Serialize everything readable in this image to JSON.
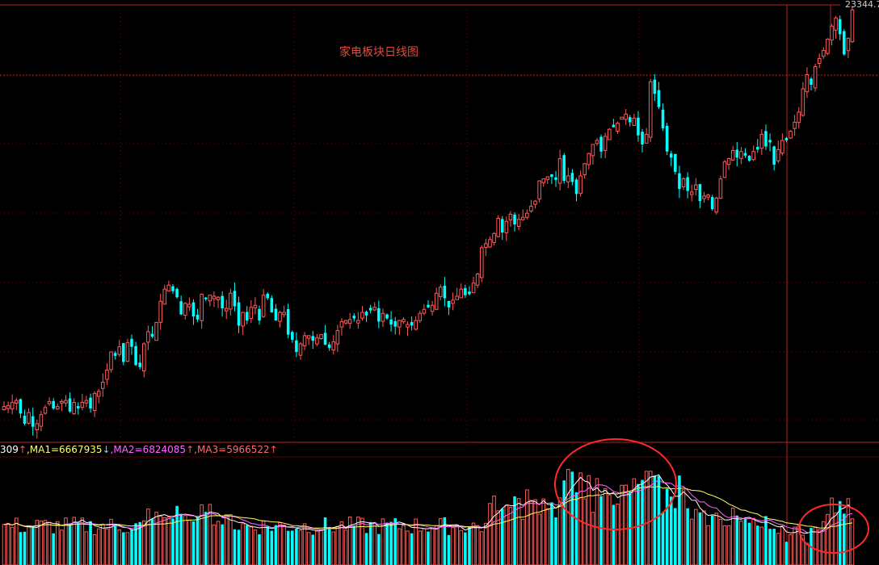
{
  "title": "家电板块日线图",
  "price_label": "23344.7",
  "volume_header": {
    "prefix": "309",
    "prefix_arrow": "↑",
    "ma1": ",MA1=6667935",
    "ma1_arrow": "↓",
    "ma2": ",MA2=6824085",
    "ma2_arrow": "↑",
    "ma3": ",MA3=5966522",
    "ma3_arrow": "↑"
  },
  "colors": {
    "up": "#ff5a5a",
    "down": "#00ffff",
    "grid": "#8b0000",
    "ma1": "#ffffff",
    "ma2": "#ff66ff",
    "ma3": "#ffff66",
    "title": "#e04a3a",
    "circle": "#ff2a2a"
  },
  "chart_data": {
    "type": "candlestick",
    "series_close": [
      -0.7,
      -0.6,
      -0.3,
      -0.1,
      -1.4,
      -2.4,
      -1.3,
      -2.7,
      -2.4,
      -1.5,
      -0.8,
      -0.2,
      -0.9,
      -0.7,
      -0.2,
      -0.1,
      -1.2,
      -0.3,
      -0.9,
      -0.3,
      -0.1,
      -0.9,
      0.6,
      0.8,
      1.7,
      2.9,
      4.7,
      4.3,
      5.2,
      3.7,
      5.6,
      5.2,
      3.4,
      3.2,
      5.5,
      6.7,
      6.2,
      7.6,
      9.7,
      10.9,
      11.3,
      10.7,
      10.1,
      8.4,
      9.5,
      9.4,
      8.2,
      7.9,
      10.4,
      9.9,
      10.3,
      10.2,
      10.1,
      9.0,
      9.0,
      10.5,
      9.2,
      7.3,
      8.6,
      7.8,
      9.1,
      9.3,
      7.8,
      10.3,
      10.0,
      8.6,
      7.8,
      8.6,
      8.6,
      6.4,
      5.9,
      4.7,
      5.5,
      6.3,
      6.3,
      5.8,
      6.1,
      6.4,
      5.4,
      5.1,
      5.7,
      6.8,
      7.7,
      7.8,
      7.9,
      8.0,
      7.8,
      8.6,
      8.3,
      8.8,
      9.1,
      7.7,
      8.5,
      8.0,
      7.4,
      7.2,
      7.8,
      7.9,
      7.4,
      7.3,
      7.8,
      8.5,
      8.9,
      9.1,
      9.3,
      10.5,
      11.1,
      10.0,
      9.1,
      9.8,
      10.2,
      10.9,
      10.3,
      10.4,
      11.5,
      12.4,
      15.0,
      15.4,
      15.8,
      16.4,
      17.9,
      16.5,
      17.6,
      18.3,
      17.3,
      17.8,
      18.0,
      18.4,
      19.1,
      19.6,
      21.6,
      21.8,
      22.0,
      22.0,
      21.7,
      23.8,
      21.6,
      22.1,
      21.5,
      20.3,
      22.1,
      23.3,
      24.3,
      25.2,
      25.6,
      24.5,
      26.0,
      26.7,
      26.9,
      27.3,
      27.9,
      28.2,
      27.4,
      27.8,
      26.1,
      25.2,
      26.2,
      31.4,
      30.2,
      28.9,
      26.8,
      24.5,
      23.9,
      22.5,
      20.8,
      21.8,
      20.6,
      20.5,
      21.2,
      19.6,
      20.1,
      20.2,
      18.8,
      19.9,
      21.8,
      23.5,
      23.8,
      24.6,
      23.9,
      24.5,
      24.1,
      23.6,
      24.5,
      24.7,
      26.2,
      25.0,
      25.4,
      23.2,
      24.7,
      25.6,
      25.6,
      26.5,
      27.4,
      28.4,
      30.7,
      32.1,
      31.1,
      32.9,
      33.7,
      34.5,
      35.6,
      36.9,
      37.7,
      36.1,
      34.1,
      35.7,
      38.5
    ],
    "volume_ma_labels": [
      "MA1",
      "MA2",
      "MA3"
    ],
    "volume_ma_values": [
      6667935,
      6824085,
      5966522
    ]
  }
}
